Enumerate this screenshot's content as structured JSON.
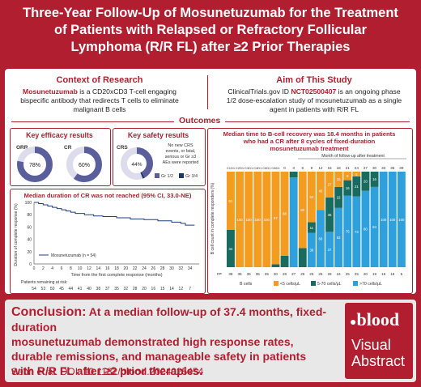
{
  "title_lines": [
    "Three-Year Follow-Up of Mosunetuzumab for the Treatment",
    "of Patients with Relapsed or Refractory Follicular",
    "Lymphoma (R/R FL) after ≥2 Prior Therapies"
  ],
  "context": {
    "heading": "Context of Research",
    "drug": "Mosunetuzumab",
    "text1": " is a CD20xCD3 T-cell engaging",
    "text2": "bispecific antibody that redirects T cells to eliminate",
    "text3": "malignant B cells"
  },
  "aim": {
    "heading": "Aim of This Study",
    "text1a": "ClinicalTrials.gov ID ",
    "nct": "NCT02500407",
    "text1b": " is an ongoing phase",
    "text2": "1/2 dose-escalation study of mosunetuzumab as a single",
    "text3": "agent in patients with R/R FL"
  },
  "outcomes_label": "Outcomes",
  "efficacy": {
    "title": "Key efficacy results",
    "orr_label": "ORR",
    "orr_value": "78%",
    "orr_pct": 78,
    "cr_label": "CR",
    "cr_value": "60%",
    "cr_pct": 60
  },
  "safety": {
    "title": "Key safety results",
    "crs_label": "CRS",
    "crs_value": "44%",
    "gr12_pct": 42,
    "gr34_pct": 2,
    "note1": "No new CRS",
    "note2": "events, or fatal,",
    "note3": "serious or Gr ≥3",
    "note4": "AEs were reported",
    "legend_gr12": "Gr 1/2",
    "legend_gr34": "Gr 3/4"
  },
  "km": {
    "title": "Median duration of CR was not reached (95% CI, 33.0-NE)",
    "ylabel": "Duration of complete response (%)",
    "xlabel": "Time from the first complete response (months)",
    "legend": "Mosunetuzumab (n = 54)",
    "yticks": [
      "100",
      "80",
      "60",
      "40",
      "20",
      "0"
    ],
    "xticks": [
      "0",
      "2",
      "4",
      "6",
      "8",
      "10",
      "12",
      "14",
      "16",
      "18",
      "20",
      "22",
      "24",
      "26",
      "28",
      "30",
      "32",
      "34"
    ],
    "risk_label": "Patients remaining at risk:",
    "risk": [
      "54",
      "53",
      "50",
      "45",
      "44",
      "41",
      "40",
      "38",
      "37",
      "35",
      "32",
      "28",
      "20",
      "16",
      "15",
      "14",
      "12",
      "7"
    ]
  },
  "bcell": {
    "title1": "Median time to B-cell recovery was 18.4 months in patients",
    "title2": "who had a CR after 8 cycles of fixed-duration",
    "title3": "mosunetuzumab treatment",
    "month_label": "Month of follow-up after treatment",
    "ylabel": "B cell count in complete responders (%)",
    "cycles": [
      "C1D1",
      "C2D1",
      "C3D1",
      "C4D1",
      "C6D1",
      "C8D1"
    ],
    "months": [
      "0",
      "3",
      "6",
      "9",
      "12",
      "15",
      "18",
      "21",
      "24",
      "27",
      "30",
      "33",
      "36",
      "39"
    ],
    "n_label": "n=",
    "n_values": [
      "38",
      "36",
      "35",
      "35",
      "35",
      "30",
      "26",
      "27",
      "25",
      "26",
      "26",
      "26",
      "24",
      "25",
      "25",
      "20",
      "19",
      "18",
      "18",
      "5"
    ],
    "legend_title": "B cells",
    "legend_lt5": "<5 cells/μL",
    "legend_mid": "5-70 cells/μL",
    "legend_gt70": ">70 cells/μL",
    "colors": {
      "lt5": "#f39c1f",
      "mid": "#1a6b5f",
      "gt70": "#2ea0dc"
    }
  },
  "conclusion": {
    "label": "Conclusion:",
    "line1": " At a median follow-up of 37.4 months, fixed-duration",
    "line2": "mosunetuzumab demonstrated high response rates,",
    "line3": "durable remissions, and manageable safety in patients",
    "line4": "with R/R FL after ≥2 prior therapies."
  },
  "citation": {
    "prefix": "Sehn et al. DOI: 10.1182/",
    "journal": "blood",
    "suffix": ".2024025454"
  },
  "badge": {
    "brand": "blood",
    "line1": "Visual",
    "line2": "Abstract"
  },
  "accent_color": "#b01e2f"
}
